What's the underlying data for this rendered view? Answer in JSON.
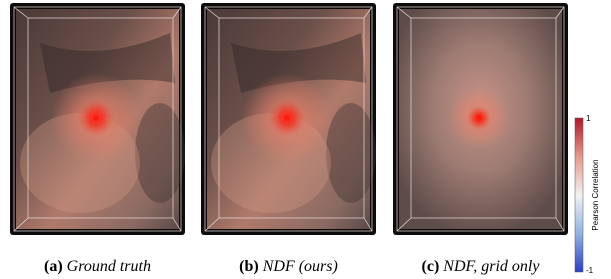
{
  "panels": [
    {
      "tag": "(a)",
      "caption": "Ground truth"
    },
    {
      "tag": "(b)",
      "caption": "NDF (ours)"
    },
    {
      "tag": "(c)",
      "caption": "NDF, grid only"
    }
  ],
  "colorbar": {
    "label": "Pearson Correlation",
    "max": 1,
    "min": -1
  }
}
